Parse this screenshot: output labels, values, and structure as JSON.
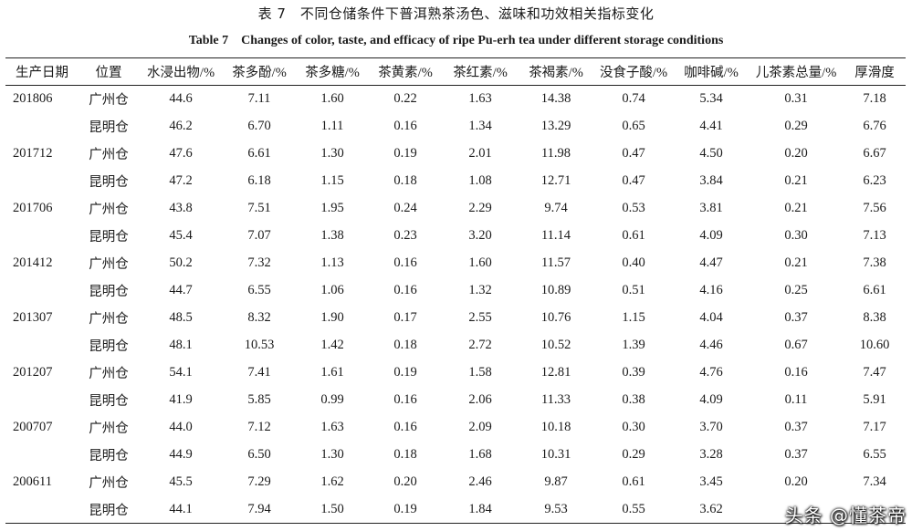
{
  "title_cn": "表 7　不同仓储条件下普洱熟茶汤色、滋味和功效相关指标变化",
  "title_en": "Table 7　Changes of color, taste, and efficacy of ripe Pu-erh tea under different storage conditions",
  "columns": [
    "生产日期",
    "位置",
    "水浸出物/%",
    "茶多酚/%",
    "茶多糖/%",
    "茶黄素/%",
    "茶红素/%",
    "茶褐素/%",
    "没食子酸/%",
    "咖啡碱/%",
    "儿茶素总量/%",
    "厚滑度"
  ],
  "rows": [
    {
      "date": "201806",
      "loc": "广州仓",
      "v": [
        "44.6",
        "7.11",
        "1.60",
        "0.22",
        "1.63",
        "14.38",
        "0.74",
        "5.34",
        "0.31",
        "7.18"
      ]
    },
    {
      "date": "",
      "loc": "昆明仓",
      "v": [
        "46.2",
        "6.70",
        "1.11",
        "0.16",
        "1.34",
        "13.29",
        "0.65",
        "4.41",
        "0.29",
        "6.76"
      ]
    },
    {
      "date": "201712",
      "loc": "广州仓",
      "v": [
        "47.6",
        "6.61",
        "1.30",
        "0.19",
        "2.01",
        "11.98",
        "0.47",
        "4.50",
        "0.20",
        "6.67"
      ]
    },
    {
      "date": "",
      "loc": "昆明仓",
      "v": [
        "47.2",
        "6.18",
        "1.15",
        "0.18",
        "1.08",
        "12.71",
        "0.47",
        "3.84",
        "0.21",
        "6.23"
      ]
    },
    {
      "date": "201706",
      "loc": "广州仓",
      "v": [
        "43.8",
        "7.51",
        "1.95",
        "0.24",
        "2.29",
        "9.74",
        "0.53",
        "3.81",
        "0.21",
        "7.56"
      ]
    },
    {
      "date": "",
      "loc": "昆明仓",
      "v": [
        "45.4",
        "7.07",
        "1.38",
        "0.23",
        "3.20",
        "11.14",
        "0.61",
        "4.09",
        "0.30",
        "7.13"
      ]
    },
    {
      "date": "201412",
      "loc": "广州仓",
      "v": [
        "50.2",
        "7.32",
        "1.13",
        "0.16",
        "1.60",
        "11.57",
        "0.40",
        "4.47",
        "0.21",
        "7.38"
      ]
    },
    {
      "date": "",
      "loc": "昆明仓",
      "v": [
        "44.7",
        "6.55",
        "1.06",
        "0.16",
        "1.32",
        "10.89",
        "0.51",
        "4.16",
        "0.25",
        "6.61"
      ]
    },
    {
      "date": "201307",
      "loc": "广州仓",
      "v": [
        "48.5",
        "8.32",
        "1.90",
        "0.17",
        "2.55",
        "10.76",
        "1.15",
        "4.04",
        "0.37",
        "8.38"
      ]
    },
    {
      "date": "",
      "loc": "昆明仓",
      "v": [
        "48.1",
        "10.53",
        "1.42",
        "0.18",
        "2.72",
        "10.52",
        "1.39",
        "4.46",
        "0.67",
        "10.60"
      ]
    },
    {
      "date": "201207",
      "loc": "广州仓",
      "v": [
        "54.1",
        "7.41",
        "1.61",
        "0.19",
        "1.58",
        "12.81",
        "0.39",
        "4.76",
        "0.16",
        "7.47"
      ]
    },
    {
      "date": "",
      "loc": "昆明仓",
      "v": [
        "41.9",
        "5.85",
        "0.99",
        "0.16",
        "2.06",
        "11.33",
        "0.38",
        "4.09",
        "0.11",
        "5.91"
      ]
    },
    {
      "date": "200707",
      "loc": "广州仓",
      "v": [
        "44.0",
        "7.12",
        "1.63",
        "0.16",
        "2.09",
        "10.18",
        "0.30",
        "3.70",
        "0.37",
        "7.17"
      ]
    },
    {
      "date": "",
      "loc": "昆明仓",
      "v": [
        "44.9",
        "6.50",
        "1.30",
        "0.18",
        "1.68",
        "10.31",
        "0.29",
        "3.28",
        "0.37",
        "6.55"
      ]
    },
    {
      "date": "200611",
      "loc": "广州仓",
      "v": [
        "45.5",
        "7.29",
        "1.62",
        "0.20",
        "2.46",
        "9.87",
        "0.61",
        "3.45",
        "0.20",
        "7.34"
      ]
    },
    {
      "date": "",
      "loc": "昆明仓",
      "v": [
        "44.1",
        "7.94",
        "1.50",
        "0.19",
        "1.84",
        "9.53",
        "0.55",
        "3.62",
        "",
        ""
      ]
    }
  ],
  "watermark": "头条 @懂茶帝"
}
